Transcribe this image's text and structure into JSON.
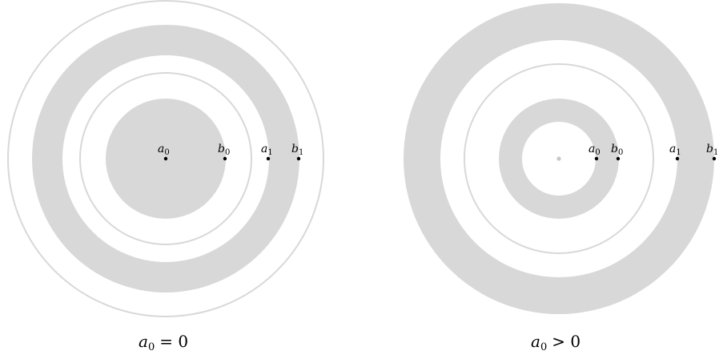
{
  "panels": [
    {
      "caption": {
        "var": "a",
        "sub": "0",
        "rel": "= 0"
      },
      "points": [
        {
          "var": "a",
          "sub": "0"
        },
        {
          "var": "b",
          "sub": "0"
        },
        {
          "var": "a",
          "sub": "1"
        },
        {
          "var": "b",
          "sub": "1"
        }
      ]
    },
    {
      "caption": {
        "var": "a",
        "sub": "0",
        "rel": "> 0"
      },
      "points": [
        {
          "var": "a",
          "sub": "0"
        },
        {
          "var": "b",
          "sub": "0"
        },
        {
          "var": "a",
          "sub": "1"
        },
        {
          "var": "b",
          "sub": "1"
        }
      ]
    }
  ],
  "colors": {
    "fill": "#d8d8d8",
    "outline": "#d8d8d8",
    "point": "#000000",
    "center_faint": "#c8c8c8"
  }
}
